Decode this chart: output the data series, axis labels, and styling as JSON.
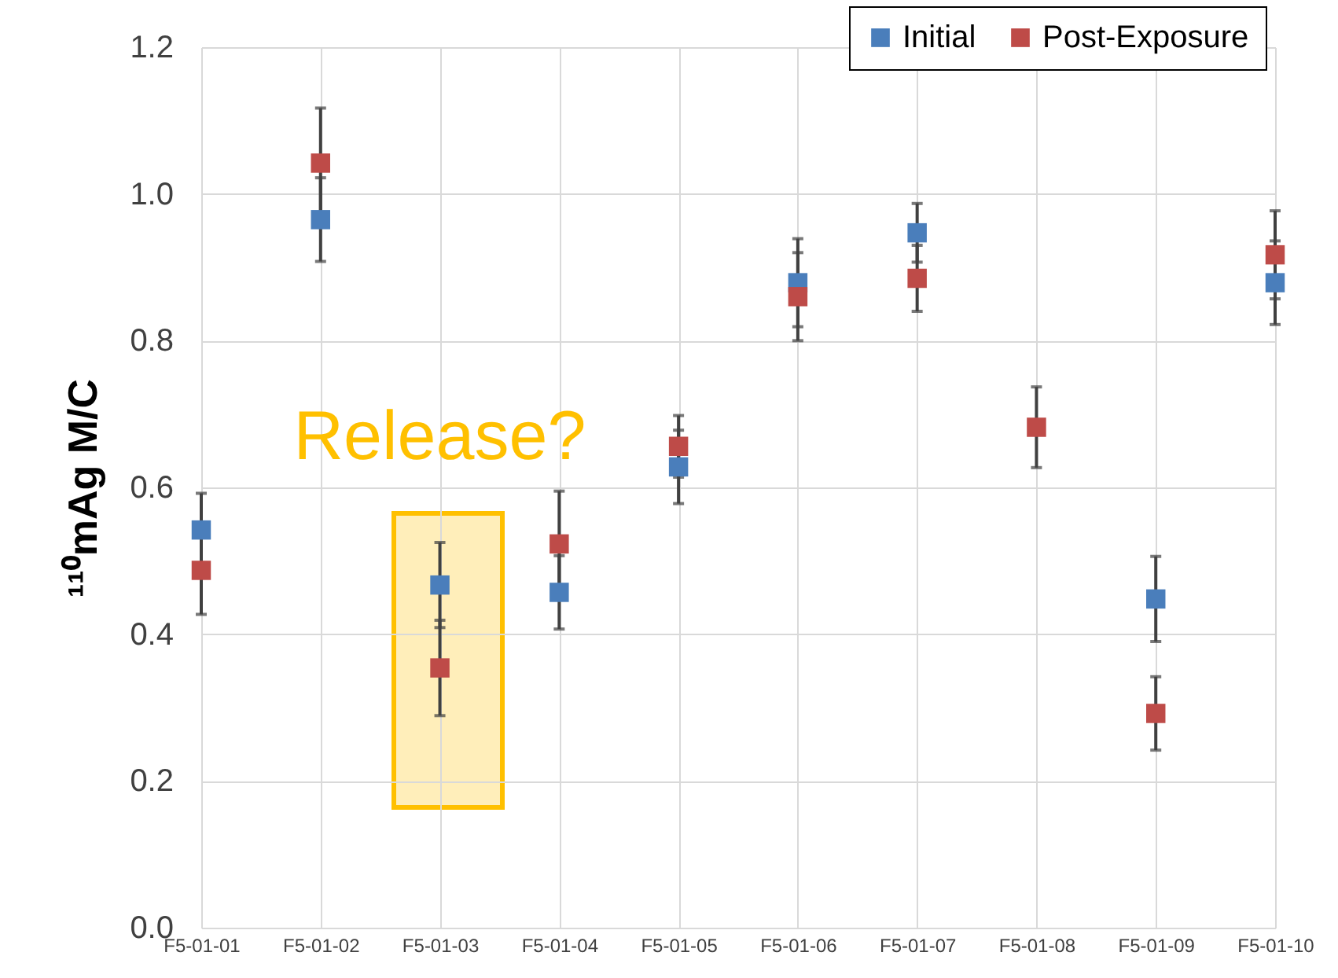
{
  "chart_data": {
    "type": "scatter",
    "ylabel": "¹¹⁰mAg M/C",
    "categories": [
      "F5-01-01",
      "F5-01-02",
      "F5-01-03",
      "F5-01-04",
      "F5-01-05",
      "F5-01-06",
      "F5-01-07",
      "F5-01-08",
      "F5-01-09",
      "F5-01-10"
    ],
    "series": [
      {
        "name": "Initial",
        "color": "#4a7ebb",
        "values": [
          0.542,
          0.965,
          0.467,
          0.457,
          0.628,
          0.879,
          0.947,
          null,
          0.448,
          0.879
        ],
        "errors": [
          0.05,
          0.057,
          0.058,
          0.05,
          0.05,
          0.06,
          0.04,
          null,
          0.058,
          0.057
        ]
      },
      {
        "name": "Post-Exposure",
        "color": "#be4b48",
        "values": [
          0.487,
          1.042,
          0.354,
          0.523,
          0.656,
          0.86,
          0.885,
          0.682,
          0.292,
          0.917
        ],
        "errors": [
          0.06,
          0.075,
          0.065,
          0.072,
          0.042,
          0.06,
          0.045,
          0.055,
          0.05,
          0.06
        ]
      }
    ],
    "ylim": [
      0,
      1.2
    ],
    "yticks": [
      {
        "value": 0,
        "label": "0.0"
      },
      {
        "value": 0.2,
        "label": "0.2"
      },
      {
        "value": 0.4,
        "label": "0.4"
      },
      {
        "value": 0.6,
        "label": "0.6"
      },
      {
        "value": 0.8,
        "label": "0.8"
      },
      {
        "value": 1,
        "label": "1.0"
      },
      {
        "value": 1.2,
        "label": "1.2"
      }
    ],
    "grid": true,
    "legend": "top right",
    "marker": "square",
    "annotations": [
      "Release?"
    ]
  }
}
